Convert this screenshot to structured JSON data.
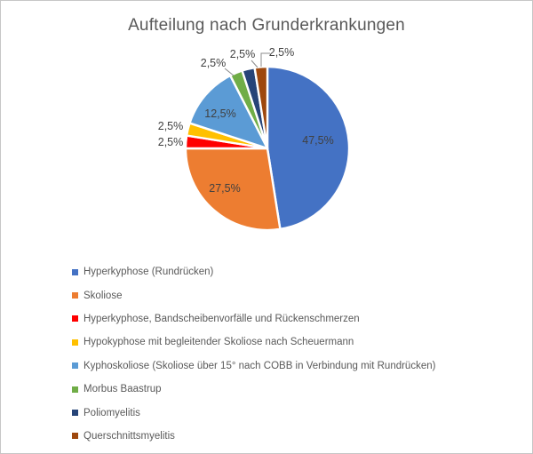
{
  "chart_data": {
    "type": "pie",
    "title": "Aufteilung nach Grunderkrankungen",
    "unit": "%",
    "start_angle_deg": 0,
    "direction": "clockwise",
    "legend_position": "bottom-left",
    "slices": [
      {
        "label": "Hyperkyphose (Rundrücken)",
        "value": 47.5,
        "display": "47,5%",
        "color": "#4472C4",
        "label_placement": "inside"
      },
      {
        "label": "Skoliose",
        "value": 27.5,
        "display": "27,5%",
        "color": "#ED7D31",
        "label_placement": "inside"
      },
      {
        "label": "Hyperkyphose, Bandscheibenvorfälle und Rückenschmerzen",
        "value": 2.5,
        "display": "2,5%",
        "color": "#FF0000",
        "label_placement": "outside"
      },
      {
        "label": "Hypokyphose mit begleitender Skoliose nach Scheuermann",
        "value": 2.5,
        "display": "2,5%",
        "color": "#FFC000",
        "label_placement": "outside"
      },
      {
        "label": "Kyphoskoliose (Skoliose über 15° nach COBB in Verbindung mit Rundrücken)",
        "value": 12.5,
        "display": "12,5%",
        "color": "#5B9BD5",
        "label_placement": "inside"
      },
      {
        "label": "Morbus Baastrup",
        "value": 2.5,
        "display": "2,5%",
        "color": "#70AD47",
        "label_placement": "outside"
      },
      {
        "label": "Poliomyelitis",
        "value": 2.5,
        "display": "2,5%",
        "color": "#264478",
        "label_placement": "outside"
      },
      {
        "label": "Querschnittsmyelitis",
        "value": 2.5,
        "display": "2,5%",
        "color": "#9E480E",
        "label_placement": "outside"
      }
    ]
  },
  "style": {
    "title_color": "#595959",
    "label_color": "#404040",
    "legend_text_color": "#595959",
    "leader_line_color": "#8C8C8C",
    "slice_border_color": "#FFFFFF",
    "frame_border_color": "#C6C6C6"
  }
}
